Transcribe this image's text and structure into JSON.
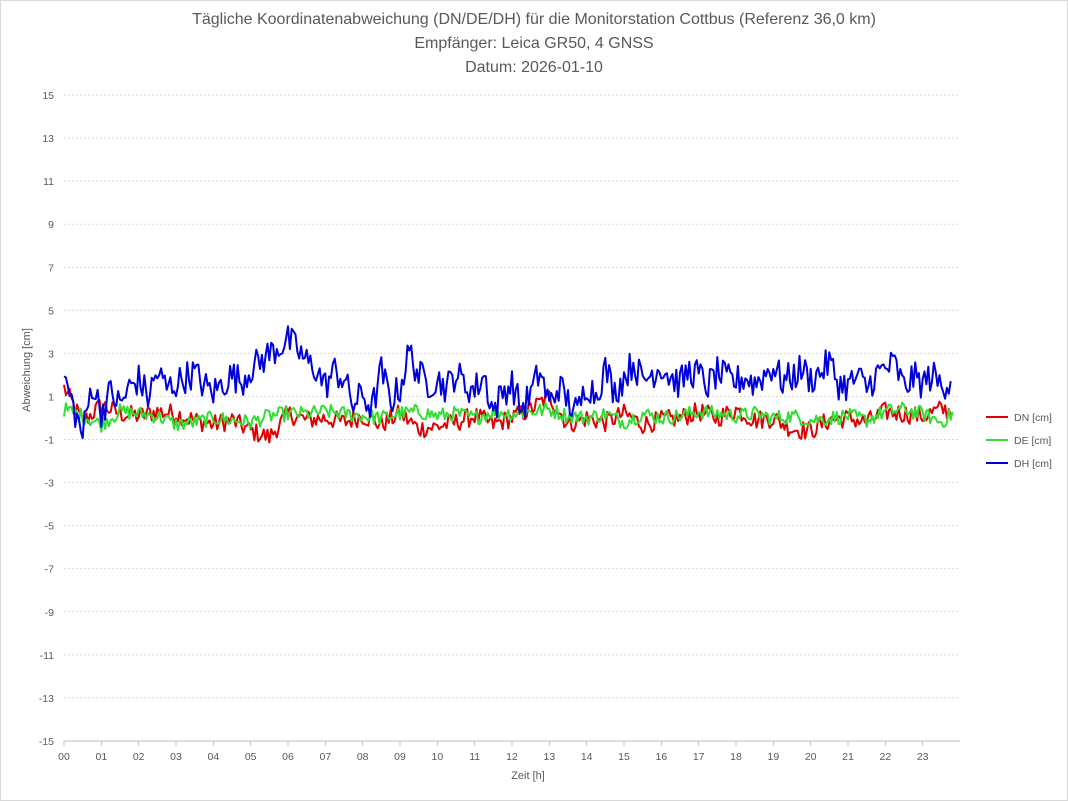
{
  "chart_data": {
    "type": "line",
    "title": "Tägliche Koordinatenabweichung (DN/DE/DH) für die Monitorstation Cottbus (Referenz 36,0 km)",
    "subtitle1": "Empfänger: Leica GR50, 4 GNSS",
    "subtitle2": "Datum: 2026-01-10",
    "xlabel": "Zeit [h]",
    "ylabel": "Abweichung [cm]",
    "xlim": [
      0,
      24
    ],
    "ylim": [
      -15,
      15
    ],
    "y_ticks": [
      "15",
      "13",
      "11",
      "9",
      "7",
      "5",
      "3",
      "1",
      "-1",
      "-3",
      "-5",
      "-7",
      "-9",
      "-11",
      "-13",
      "-15"
    ],
    "x_ticks": [
      "00",
      "01",
      "02",
      "03",
      "04",
      "05",
      "06",
      "07",
      "08",
      "09",
      "10",
      "11",
      "12",
      "13",
      "14",
      "15",
      "16",
      "17",
      "18",
      "19",
      "20",
      "21",
      "22",
      "23"
    ],
    "grid": "horizontal-dotted",
    "legend_position": "right",
    "series": [
      {
        "name": "DN [cm]",
        "color": "#e00000",
        "x": [
          0,
          0.5,
          1,
          1.5,
          2,
          2.5,
          3,
          3.5,
          4,
          4.5,
          5,
          5.5,
          6,
          6.5,
          7,
          7.5,
          8,
          8.5,
          9,
          9.5,
          10,
          10.5,
          11,
          11.5,
          12,
          12.5,
          13,
          13.5,
          14,
          14.5,
          15,
          15.5,
          16,
          16.5,
          17,
          17.5,
          18,
          18.5,
          19,
          19.5,
          20,
          20.5,
          21,
          21.5,
          22,
          22.5,
          23,
          23.5,
          23.8
        ],
        "values": [
          1.4,
          -0.2,
          0.6,
          0.2,
          0.1,
          0.3,
          0.2,
          -0.1,
          -0.3,
          -0.1,
          -0.6,
          -0.9,
          0.2,
          -0.1,
          0.0,
          -0.2,
          0.1,
          -0.3,
          0.2,
          -0.5,
          -0.4,
          -0.2,
          0.1,
          -0.3,
          0.0,
          0.4,
          1.0,
          -0.3,
          0.0,
          -0.2,
          0.2,
          -0.3,
          -0.1,
          0.0,
          0.3,
          0.0,
          0.4,
          -0.1,
          0.0,
          -0.5,
          -0.6,
          -0.1,
          0.0,
          -0.2,
          0.3,
          0.2,
          0.1,
          0.4,
          0.3
        ]
      },
      {
        "name": "DE [cm]",
        "color": "#33dd33",
        "x": [
          0,
          0.5,
          1,
          1.5,
          2,
          2.5,
          3,
          3.5,
          4,
          4.5,
          5,
          5.5,
          6,
          6.5,
          7,
          7.5,
          8,
          8.5,
          9,
          9.5,
          10,
          10.5,
          11,
          11.5,
          12,
          12.5,
          13,
          13.5,
          14,
          14.5,
          15,
          15.5,
          16,
          16.5,
          17,
          17.5,
          18,
          18.5,
          19,
          19.5,
          20,
          20.5,
          21,
          21.5,
          22,
          22.5,
          23,
          23.5,
          23.8
        ],
        "values": [
          0.4,
          0.1,
          -0.3,
          0.3,
          0.2,
          0.1,
          -0.3,
          -0.2,
          0.0,
          -0.1,
          -0.2,
          0.1,
          0.2,
          0.2,
          0.3,
          0.2,
          0.1,
          0.0,
          0.2,
          0.3,
          0.1,
          0.2,
          0.0,
          0.3,
          0.2,
          0.3,
          0.4,
          0.1,
          0.0,
          0.2,
          -0.2,
          0.2,
          0.0,
          0.1,
          0.3,
          0.2,
          0.1,
          0.2,
          0.0,
          0.1,
          -0.1,
          0.0,
          0.1,
          -0.1,
          0.3,
          0.4,
          0.2,
          -0.2,
          0.2
        ]
      },
      {
        "name": "DH [cm]",
        "color": "#0000dd",
        "x": [
          0,
          0.25,
          0.5,
          0.75,
          1,
          1.25,
          1.5,
          1.75,
          2,
          2.25,
          2.5,
          2.75,
          3,
          3.25,
          3.5,
          3.75,
          4,
          4.25,
          4.5,
          4.75,
          5,
          5.25,
          5.5,
          5.75,
          6,
          6.25,
          6.5,
          6.75,
          7,
          7.25,
          7.5,
          7.75,
          8,
          8.25,
          8.5,
          8.75,
          9,
          9.25,
          9.5,
          9.75,
          10,
          10.25,
          10.5,
          10.75,
          11,
          11.25,
          11.5,
          11.75,
          12,
          12.25,
          12.5,
          12.75,
          13,
          13.25,
          13.5,
          13.75,
          14,
          14.25,
          14.5,
          14.75,
          15,
          15.25,
          15.5,
          15.75,
          16,
          16.25,
          16.5,
          16.75,
          17,
          17.25,
          17.5,
          17.75,
          18,
          18.25,
          18.5,
          18.75,
          19,
          19.25,
          19.5,
          19.75,
          20,
          20.25,
          20.5,
          20.75,
          21,
          21.25,
          21.5,
          21.75,
          22,
          22.25,
          22.5,
          22.75,
          23,
          23.25,
          23.5,
          23.75
        ],
        "values": [
          1.9,
          0.5,
          -0.8,
          1.6,
          0.3,
          1.2,
          0.6,
          1.4,
          1.8,
          1.0,
          2.1,
          1.4,
          1.6,
          1.9,
          2.1,
          1.5,
          1.2,
          1.6,
          2.0,
          1.7,
          2.3,
          2.6,
          3.0,
          3.3,
          3.6,
          3.2,
          2.6,
          2.3,
          1.5,
          2.2,
          1.8,
          0.6,
          1.1,
          0.4,
          2.2,
          0.8,
          1.4,
          3.1,
          2.0,
          1.6,
          1.8,
          1.4,
          2.1,
          1.5,
          1.3,
          2.0,
          0.3,
          1.2,
          1.6,
          0.4,
          1.1,
          2.2,
          0.6,
          1.5,
          0.8,
          0.2,
          1.6,
          1.1,
          2.3,
          1.2,
          1.9,
          2.6,
          1.7,
          2.1,
          2.4,
          1.9,
          1.6,
          2.2,
          2.0,
          1.5,
          2.1,
          1.8,
          1.7,
          1.9,
          1.6,
          2.0,
          2.4,
          1.7,
          1.9,
          2.3,
          1.8,
          2.1,
          2.6,
          1.6,
          1.5,
          1.9,
          1.4,
          2.0,
          2.3,
          2.5,
          1.4,
          1.9,
          1.6,
          2.0,
          1.5,
          1.8
        ]
      }
    ]
  }
}
